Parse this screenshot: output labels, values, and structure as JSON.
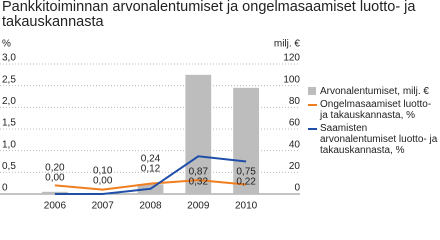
{
  "chart_data": {
    "type": "bar_line",
    "title": "Pankkitoiminnan arvonalentumiset ja ongelmasaamiset luotto- ja takauskannasta",
    "y_label": "%",
    "y2_label": "milj. €",
    "categories": [
      "2006",
      "2007",
      "2008",
      "2009",
      "2010"
    ],
    "ylim": [
      0,
      3
    ],
    "yticks": [
      0,
      {
        "value": 0.5,
        "label": "0,5"
      },
      {
        "value": 1,
        "label": "1,0"
      },
      {
        "value": 1.5,
        "label": "1,5"
      },
      {
        "value": 2,
        "label": "2,0"
      },
      {
        "value": 2.5,
        "label": "2,5"
      },
      {
        "value": 3,
        "label": "3,0"
      }
    ],
    "y2lim": [
      0,
      120
    ],
    "y2ticks": [
      0,
      20,
      40,
      60,
      80,
      100,
      120
    ],
    "grid": true,
    "series": [
      {
        "name": "Arvonalentumiset, milj. €",
        "type": "bar",
        "axis": "y2",
        "color": "#bdbdbd",
        "values": [
          2,
          1,
          9,
          110,
          98
        ]
      },
      {
        "name": "Ongelmasaamiset luotto- ja takauskannasta, %",
        "type": "line",
        "color": "#f07d1e",
        "values": [
          0.2,
          0.1,
          0.24,
          0.32,
          0.22
        ],
        "value_labels": [
          "0,20",
          "0,10",
          "0,24",
          "0,32",
          "0,22"
        ]
      },
      {
        "name": "Saamisten arvonalentumiset luotto- ja takauskannasta, %",
        "type": "line",
        "color": "#1f4fa8",
        "values": [
          0,
          0,
          0.12,
          0.87,
          0.75
        ],
        "value_labels": [
          "0,00",
          "0,00",
          "0,12",
          "0,87",
          "0,75"
        ]
      }
    ]
  }
}
